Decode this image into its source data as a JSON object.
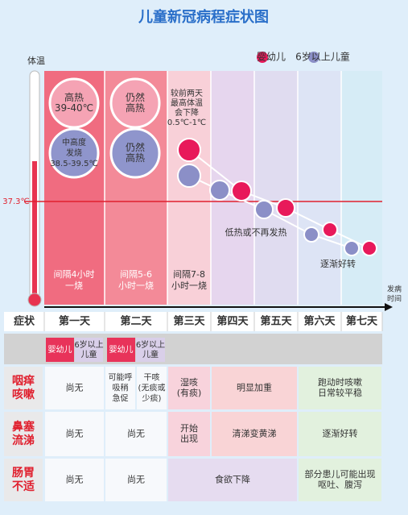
{
  "title": "儿童新冠病程症状图",
  "legend": [
    "婴幼儿",
    "6岁以上儿童"
  ],
  "axis": {
    "y_label": "体温",
    "x_label": [
      "发病",
      "时间"
    ],
    "threshold": "37.3℃"
  },
  "bubbles": [
    [
      "高热",
      "39-40℃"
    ],
    [
      "中高度",
      "发烧",
      "38.5-39.5℃"
    ],
    [
      "仍然",
      "高热"
    ],
    [
      "仍然",
      "高热"
    ]
  ],
  "notes": {
    "day3": [
      "较前两天",
      "最高体温",
      "会下降",
      "0.5℃-1℃"
    ],
    "low": "低热或不再发热",
    "better": "逐渐好转"
  },
  "intervals": [
    [
      "间隔4小时",
      "一烧"
    ],
    [
      "间隔5-6",
      "小时一烧"
    ],
    [
      "间隔7-8",
      "小时一烧"
    ]
  ],
  "table": {
    "header": "症状",
    "days": [
      "第一天",
      "第二天",
      "第三天",
      "第四天",
      "第五天",
      "第六天",
      "第七天"
    ],
    "groups": [
      [
        "婴幼儿"
      ],
      [
        "6岁以上",
        "儿童"
      ],
      [
        "婴幼儿"
      ],
      [
        "6岁以上",
        "儿童"
      ]
    ],
    "rows": [
      {
        "label": [
          "咽痒",
          "咳嗽"
        ],
        "cells": [
          [
            "尚无"
          ],
          [
            "可能呼",
            "吸稍",
            "急促"
          ],
          [
            "干咳",
            "(无痰或",
            "少痰)"
          ],
          [
            "湿咳",
            "(有痰)"
          ],
          [
            "明显加重"
          ],
          [
            "跑动时咳嗽",
            "日常较平稳"
          ]
        ]
      },
      {
        "label": [
          "鼻塞",
          "流涕"
        ],
        "cells": [
          [
            "尚无"
          ],
          [
            "尚无"
          ],
          [
            "开始",
            "出现"
          ],
          [
            "清涕变黄涕"
          ],
          [
            "逐渐好转"
          ]
        ]
      },
      {
        "label": [
          "肠胃",
          "不适"
        ],
        "cells": [
          [
            "尚无"
          ],
          [
            "尚无"
          ],
          [
            "食欲下降"
          ],
          [
            "部分患儿可能出现",
            "呕吐、腹泻"
          ]
        ]
      }
    ]
  }
}
